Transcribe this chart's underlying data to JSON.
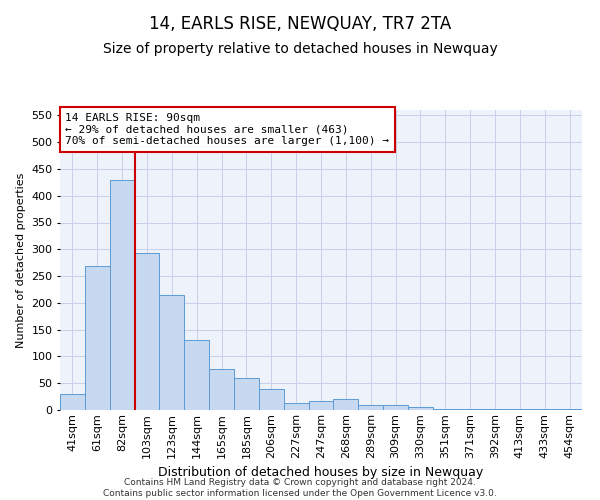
{
  "title": "14, EARLS RISE, NEWQUAY, TR7 2TA",
  "subtitle": "Size of property relative to detached houses in Newquay",
  "xlabel": "Distribution of detached houses by size in Newquay",
  "ylabel": "Number of detached properties",
  "categories": [
    "41sqm",
    "61sqm",
    "82sqm",
    "103sqm",
    "123sqm",
    "144sqm",
    "165sqm",
    "185sqm",
    "206sqm",
    "227sqm",
    "247sqm",
    "268sqm",
    "289sqm",
    "309sqm",
    "330sqm",
    "351sqm",
    "371sqm",
    "392sqm",
    "413sqm",
    "433sqm",
    "454sqm"
  ],
  "values": [
    30,
    268,
    430,
    293,
    215,
    130,
    77,
    60,
    40,
    13,
    17,
    20,
    9,
    10,
    5,
    2,
    2,
    1,
    1,
    1,
    2
  ],
  "bar_color": "#c6d9f0",
  "bar_edge_color": "#5b9bd5",
  "red_line_x": 2.5,
  "annotation_line1": "14 EARLS RISE: 90sqm",
  "annotation_line2": "← 29% of detached houses are smaller (463)",
  "annotation_line3": "70% of semi-detached houses are larger (1,100) →",
  "annotation_box_color": "#ffffff",
  "annotation_box_edge": "#cc0000",
  "red_line_color": "#cc0000",
  "ylim": [
    0,
    560
  ],
  "yticks": [
    0,
    50,
    100,
    150,
    200,
    250,
    300,
    350,
    400,
    450,
    500,
    550
  ],
  "background_color": "#eef2fb",
  "grid_color": "#c8d0e8",
  "footer_line1": "Contains HM Land Registry data © Crown copyright and database right 2024.",
  "footer_line2": "Contains public sector information licensed under the Open Government Licence v3.0.",
  "title_fontsize": 12,
  "subtitle_fontsize": 10,
  "tick_fontsize": 8,
  "ylabel_fontsize": 8,
  "xlabel_fontsize": 9
}
